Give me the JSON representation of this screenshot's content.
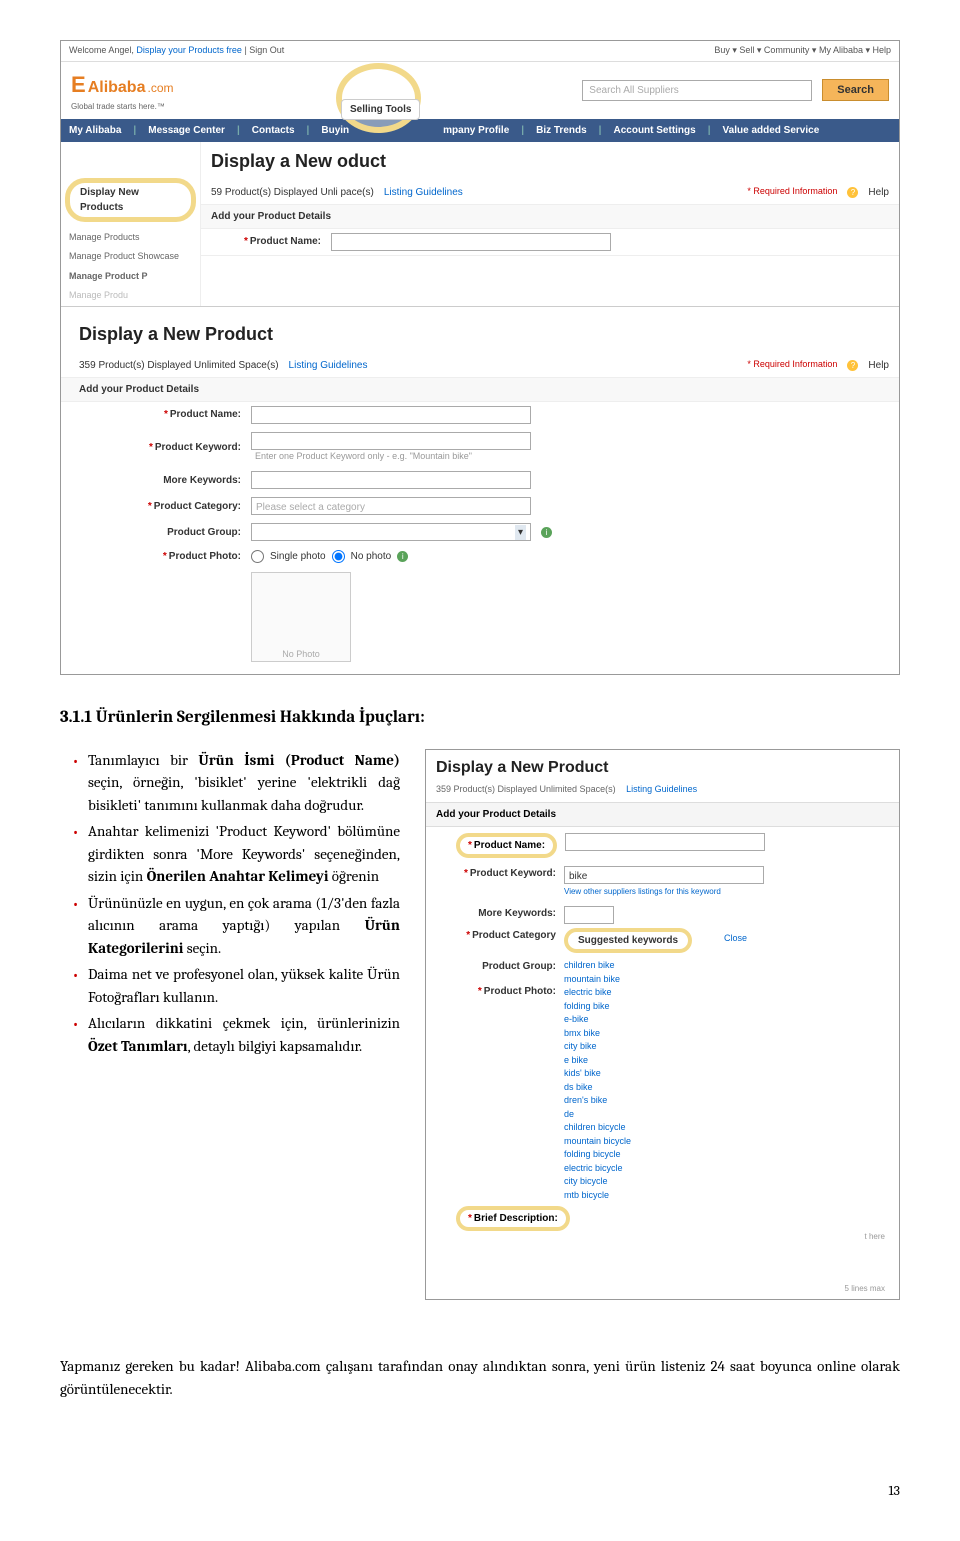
{
  "screenshot1": {
    "topbar": {
      "welcome": "Welcome Angel,",
      "display_free": "Display your Products free",
      "signout": "| Sign Out",
      "right": "Buy ▾    Sell ▾    Community ▾    My Alibaba ▾    Help"
    },
    "logo": {
      "e": "E",
      "name": "Alibaba",
      "dom": ".com",
      "tagline": "Global trade starts here.™"
    },
    "search_placeholder": "Search All Suppliers",
    "search_btn": "Search",
    "navbar": [
      "My Alibaba",
      "Message Center",
      "Contacts",
      "Buyin",
      "mpany Profile",
      "Biz Trends",
      "Account Settings",
      "Value added Service"
    ],
    "selling_tools": "Selling Tools",
    "heading1": "Display a New      oduct",
    "display_new_products": "Display New Products",
    "displayed_txt": "59 Product(s) Displayed  Unli       pace(s)",
    "listing": "Listing Guidelines",
    "required": "* Required Information",
    "help": "Help",
    "sidebar": [
      "Manage Products",
      "Manage Product Showcase",
      "Manage Product P",
      "Manage Produ"
    ],
    "add_details": "Add your Product Details",
    "product_name": "Product Name:",
    "heading2": "Display a New Product",
    "displayed_txt2": "359 Product(s) Displayed  Unlimited Space(s)",
    "fields": {
      "name": "Product Name:",
      "keyword": "Product Keyword:",
      "keyword_hint": "Enter one Product Keyword only - e.g. \"Mountain bike\"",
      "more": "More Keywords:",
      "category": "Product Category:",
      "category_hint": "Please select a category",
      "group": "Product Group:",
      "photo": "Product Photo:",
      "single": "Single photo",
      "nophoto": "No photo",
      "nophoto_box": "No Photo"
    }
  },
  "section": {
    "heading": "3.1.1 Ürünlerin Sergilenmesi Hakkında İpuçları:",
    "bullets": [
      {
        "pre": "Tanımlayıcı bir ",
        "b1": "Ürün İsmi (Product Name)",
        "mid": " seçin, örneğin, 'bisiklet' yerine 'elektrikli dağ bisikleti' tanımını kullanmak daha doğrudur."
      },
      {
        "pre": "Anahtar kelimenizi 'Product Keyword' bölümüne girdikten sonra 'More Keywords' seçeneğinden, sizin için ",
        "b1": "Önerilen Anahtar Kelimeyi",
        "mid": " öğrenin"
      },
      {
        "pre": "Ürününüzle en uygun, en çok arama (1/3'den fazla alıcının arama yaptığı) yapılan ",
        "b1": "Ürün Kategorilerini",
        "mid": " seçin."
      },
      {
        "pre": "Daima net ve profesyonel olan, yüksek kalite Ürün Fotoğrafları kullanın.",
        "b1": "",
        "mid": ""
      },
      {
        "pre": "Alıcıların dikkatini çekmek için, ürünlerinizin ",
        "b1": "Özet Tanımları",
        "mid": ", detaylı bilgiyi kapsamalıdır."
      }
    ]
  },
  "screenshot2": {
    "heading": "Display a New Product",
    "displayed": "359 Product(s) Displayed  Unlimited Space(s)",
    "listing": "Listing Guidelines",
    "add_details": "Add your Product Details",
    "name": "Product Name:",
    "keyword": "Product Keyword:",
    "keyword_val": "bike",
    "view_other": "View other suppliers listings for this keyword",
    "more": "More Keywords:",
    "suggested": "Suggested keywords",
    "close": "Close",
    "category": "Product Category",
    "group": "Product Group:",
    "photo": "Product Photo:",
    "items": [
      "children bike",
      "mountain bike",
      "electric bike",
      "folding bike",
      "e-bike",
      "bmx bike",
      "city bike",
      "e bike",
      "kids' bike",
      "     ds bike",
      "     dren's bike",
      "     de",
      "children bicycle",
      "mountain bicycle",
      "folding bicycle",
      "electric bicycle",
      "city bicycle",
      "mtb bicycle"
    ],
    "brief": "Brief Description:",
    "here_txt": "t here",
    "lines_max": "5 lines max"
  },
  "closing_line": "Yapmanız gereken bu kadar! Alibaba.com çalışanı tarafından onay alındıktan sonra, yeni ürün listeniz 24 saat boyunca online olarak görüntülenecektir.",
  "page_number": "13"
}
